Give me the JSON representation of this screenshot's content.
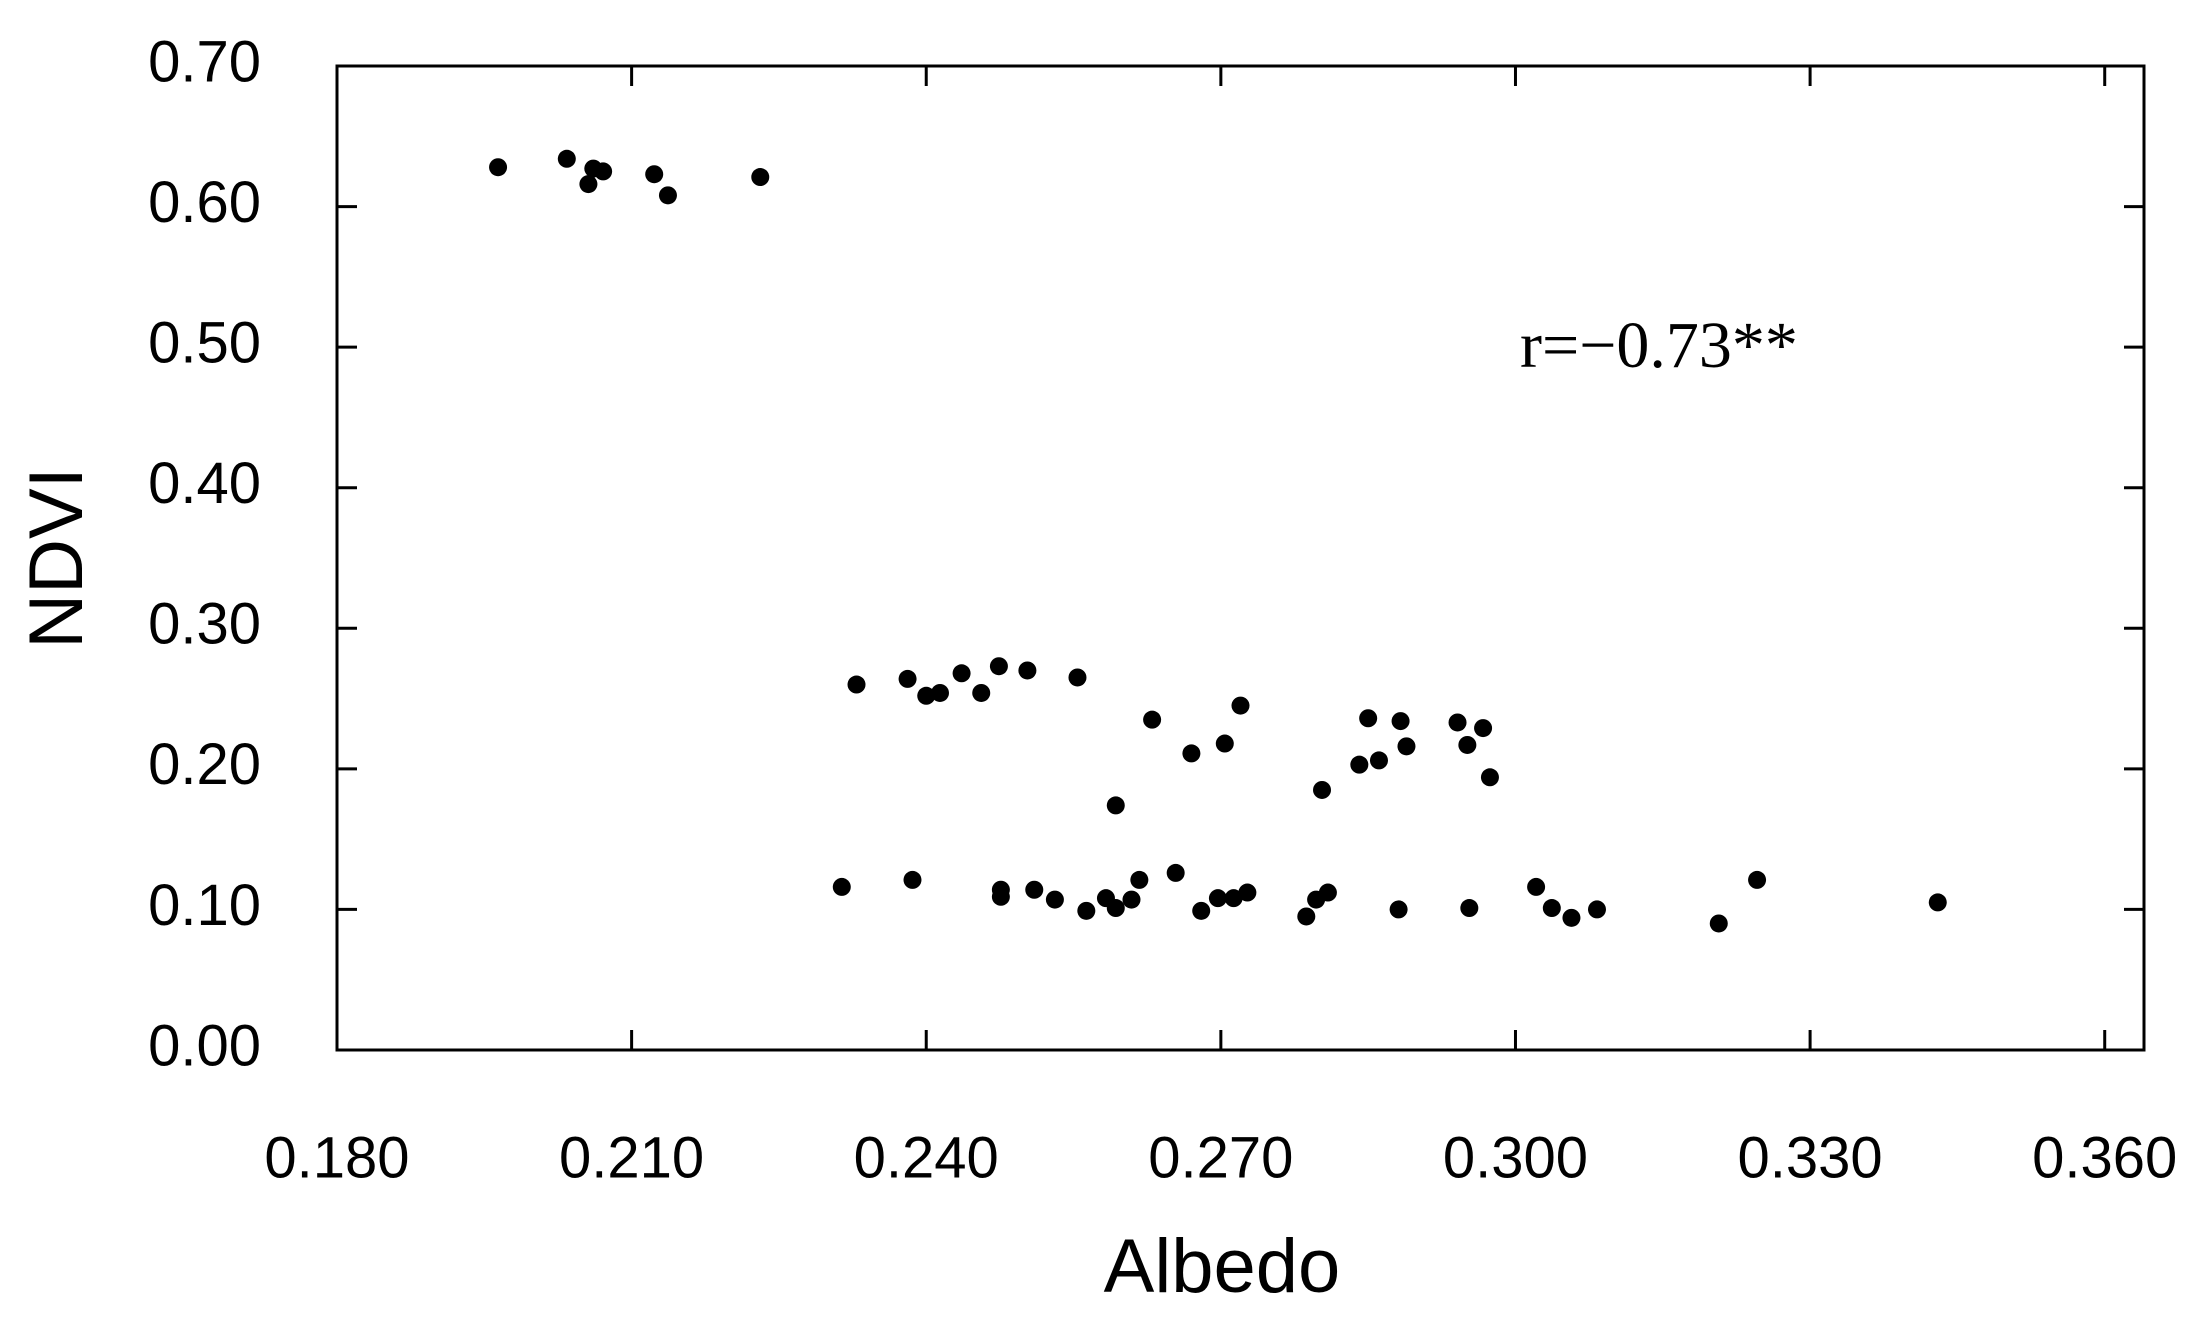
{
  "chart_data": {
    "type": "scatter",
    "x_label": "Albedo",
    "y_label": "NDVI",
    "annotation": "r=−0.73**",
    "xlim": [
      0.18,
      0.364
    ],
    "ylim": [
      0,
      0.7
    ],
    "xticks": [
      {
        "value": 0.18,
        "label": "0.180"
      },
      {
        "value": 0.21,
        "label": "0.210"
      },
      {
        "value": 0.24,
        "label": "0.240"
      },
      {
        "value": 0.27,
        "label": "0.270"
      },
      {
        "value": 0.3,
        "label": "0.300"
      },
      {
        "value": 0.33,
        "label": "0.330"
      },
      {
        "value": 0.36,
        "label": "0.360"
      }
    ],
    "yticks": [
      {
        "value": 0,
        "label": "0.00"
      },
      {
        "value": 0.1,
        "label": "0.10"
      },
      {
        "value": 0.2,
        "label": "0.20"
      },
      {
        "value": 0.3,
        "label": "0.30"
      },
      {
        "value": 0.4,
        "label": "0.40"
      },
      {
        "value": 0.5,
        "label": "0.50"
      },
      {
        "value": 0.6,
        "label": "0.60"
      },
      {
        "value": 0.7,
        "label": "0.70"
      }
    ],
    "color": "#000000",
    "x": [
      0.1964,
      0.2034,
      0.2056,
      0.2061,
      0.2071,
      0.2123,
      0.2137,
      0.2231,
      0.2314,
      0.2329,
      0.2381,
      0.2386,
      0.24,
      0.2414,
      0.2436,
      0.2456,
      0.2474,
      0.2476,
      0.2476,
      0.2503,
      0.251,
      0.2531,
      0.2554,
      0.2563,
      0.2583,
      0.2593,
      0.2593,
      0.2609,
      0.2617,
      0.263,
      0.2654,
      0.267,
      0.268,
      0.2697,
      0.2704,
      0.2713,
      0.272,
      0.2727,
      0.2787,
      0.2797,
      0.2803,
      0.2809,
      0.2841,
      0.285,
      0.2861,
      0.2881,
      0.2883,
      0.2889,
      0.2941,
      0.2951,
      0.2953,
      0.2967,
      0.2974,
      0.3021,
      0.3037,
      0.3057,
      0.3083,
      0.3207,
      0.3246,
      0.343
    ],
    "values": [
      0.628,
      0.634,
      0.616,
      0.627,
      0.625,
      0.623,
      0.608,
      0.621,
      0.116,
      0.26,
      0.264,
      0.121,
      0.252,
      0.254,
      0.268,
      0.254,
      0.273,
      0.114,
      0.109,
      0.27,
      0.114,
      0.107,
      0.265,
      0.099,
      0.108,
      0.174,
      0.101,
      0.107,
      0.121,
      0.235,
      0.126,
      0.211,
      0.099,
      0.108,
      0.218,
      0.108,
      0.245,
      0.112,
      0.095,
      0.107,
      0.185,
      0.112,
      0.203,
      0.236,
      0.206,
      0.1,
      0.234,
      0.216,
      0.233,
      0.217,
      0.101,
      0.229,
      0.194,
      0.116,
      0.101,
      0.094,
      0.1,
      0.09,
      0.121,
      0.105
    ]
  }
}
